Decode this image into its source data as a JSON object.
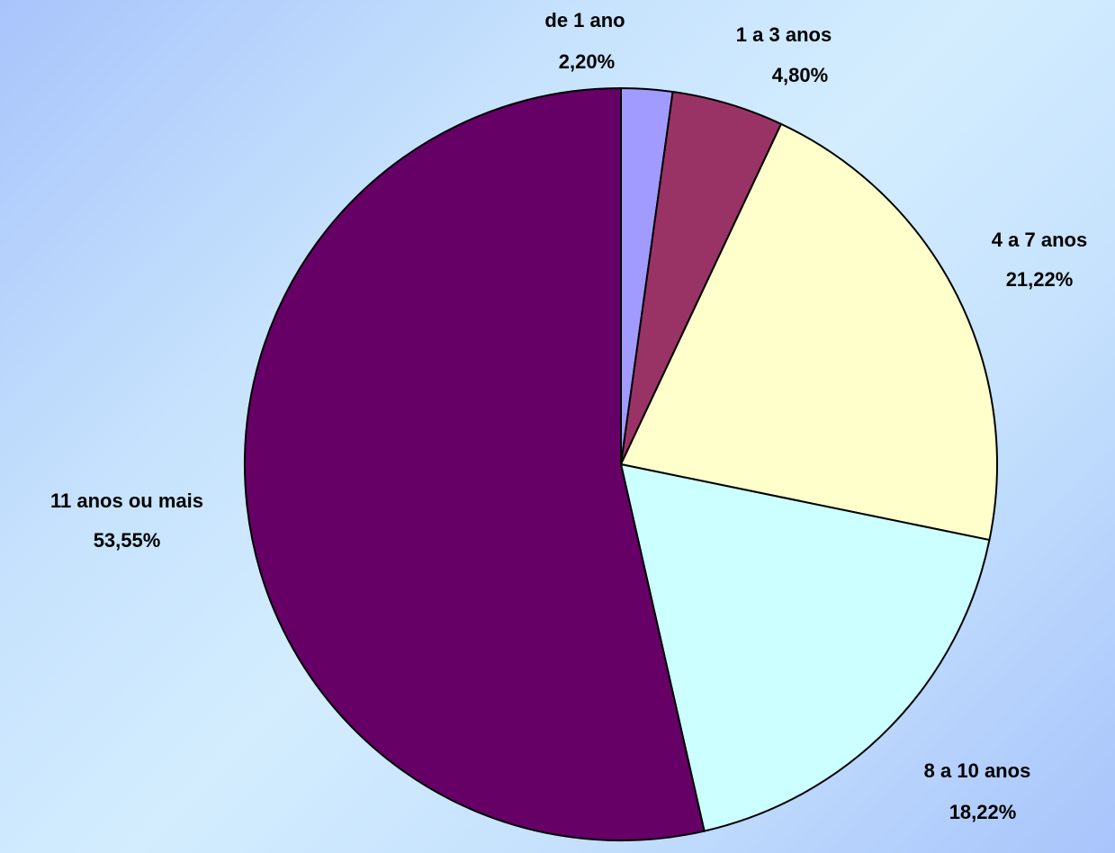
{
  "chart_data": {
    "type": "pie",
    "title": "",
    "slices": [
      {
        "label": "de 1 ano",
        "value": 2.2,
        "value_label": "2,20%",
        "color": "#a29bff"
      },
      {
        "label": "1 a 3 anos",
        "value": 4.8,
        "value_label": "4,80%",
        "color": "#993366"
      },
      {
        "label": "4 a 7 anos",
        "value": 21.22,
        "value_label": "21,22%",
        "color": "#ffffcc"
      },
      {
        "label": "8 a 10 anos",
        "value": 18.22,
        "value_label": "18,22%",
        "color": "#ccffff"
      },
      {
        "label": "11 anos ou mais",
        "value": 53.55,
        "value_label": "53,55%",
        "color": "#660066"
      }
    ],
    "start": "12 o'clock",
    "direction": "clockwise",
    "legend": "none",
    "data_labels": "category name and percentage, outside"
  }
}
